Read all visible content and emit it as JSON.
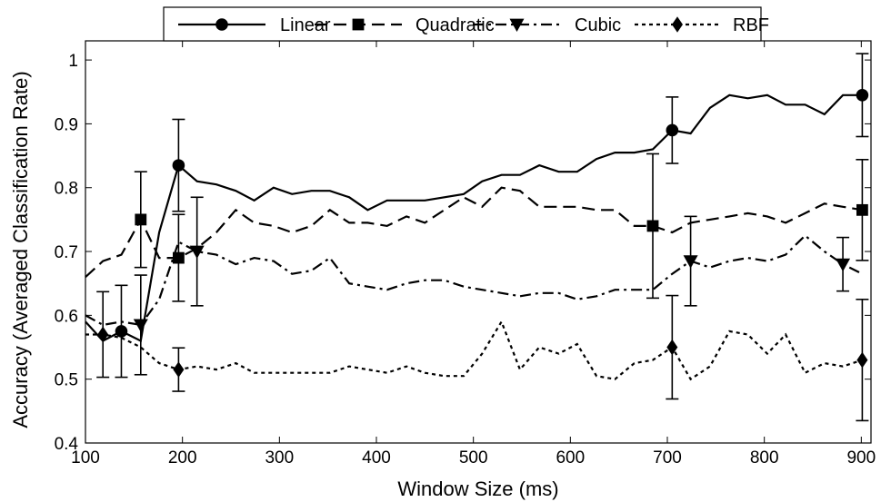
{
  "chart_data": {
    "type": "line",
    "title": "",
    "xlabel": "Window Size (ms)",
    "ylabel": "Accuracy (Averaged Classification Rate)",
    "xlim": [
      100,
      910
    ],
    "ylim": [
      0.4,
      1.03
    ],
    "xticks": [
      100,
      200,
      300,
      400,
      500,
      600,
      700,
      800,
      900
    ],
    "yticks": [
      0.4,
      0.5,
      0.6,
      0.7,
      0.8,
      0.9,
      1
    ],
    "xtick_labels": [
      "100",
      "200",
      "300",
      "400",
      "500",
      "600",
      "700",
      "800",
      "900"
    ],
    "ytick_labels": [
      "0.4",
      "0.5",
      "0.6",
      "0.7",
      "0.8",
      "0.9",
      "1"
    ],
    "grid": false,
    "legend_position": "top-center",
    "series": [
      {
        "name": "Linear",
        "line_style": "solid",
        "marker": "circle",
        "color": "#000000",
        "x": [
          100,
          118,
          137,
          157,
          176,
          196,
          215,
          235,
          255,
          274,
          294,
          313,
          333,
          352,
          372,
          391,
          411,
          450,
          490,
          509,
          529,
          548,
          568,
          588,
          607,
          627,
          646,
          666,
          685,
          705,
          724,
          744,
          764,
          783,
          803,
          822,
          842,
          862,
          881,
          901
        ],
        "y": [
          0.59,
          0.56,
          0.575,
          0.56,
          0.73,
          0.835,
          0.81,
          0.805,
          0.795,
          0.78,
          0.8,
          0.79,
          0.795,
          0.795,
          0.785,
          0.765,
          0.78,
          0.78,
          0.79,
          0.81,
          0.82,
          0.82,
          0.835,
          0.825,
          0.825,
          0.845,
          0.855,
          0.855,
          0.86,
          0.89,
          0.885,
          0.925,
          0.945,
          0.94,
          0.945,
          0.93,
          0.93,
          0.915,
          0.945,
          0.945
        ]
      },
      {
        "name": "Quadratic",
        "line_style": "dashed",
        "marker": "square",
        "color": "#000000",
        "x": [
          100,
          118,
          137,
          157,
          176,
          196,
          215,
          235,
          255,
          274,
          294,
          313,
          333,
          352,
          372,
          391,
          411,
          431,
          450,
          470,
          490,
          509,
          529,
          548,
          568,
          588,
          607,
          627,
          646,
          666,
          685,
          705,
          724,
          744,
          764,
          783,
          803,
          822,
          842,
          862,
          881,
          901
        ],
        "y": [
          0.66,
          0.685,
          0.695,
          0.75,
          0.69,
          0.69,
          0.705,
          0.73,
          0.765,
          0.745,
          0.74,
          0.73,
          0.74,
          0.765,
          0.745,
          0.745,
          0.74,
          0.755,
          0.745,
          0.765,
          0.785,
          0.77,
          0.8,
          0.795,
          0.77,
          0.77,
          0.77,
          0.765,
          0.765,
          0.74,
          0.74,
          0.73,
          0.745,
          0.75,
          0.755,
          0.76,
          0.755,
          0.745,
          0.76,
          0.775,
          0.77,
          0.765
        ]
      },
      {
        "name": "Cubic",
        "line_style": "dashdot",
        "marker": "triangle-down",
        "color": "#000000",
        "x": [
          100,
          118,
          137,
          157,
          176,
          196,
          215,
          235,
          255,
          274,
          294,
          313,
          333,
          352,
          372,
          391,
          411,
          431,
          450,
          470,
          490,
          509,
          529,
          548,
          568,
          588,
          607,
          627,
          646,
          666,
          685,
          705,
          724,
          744,
          764,
          783,
          803,
          822,
          842,
          862,
          881,
          901
        ],
        "y": [
          0.6,
          0.585,
          0.59,
          0.585,
          0.625,
          0.715,
          0.7,
          0.695,
          0.68,
          0.69,
          0.685,
          0.665,
          0.67,
          0.69,
          0.65,
          0.645,
          0.64,
          0.65,
          0.655,
          0.655,
          0.645,
          0.64,
          0.635,
          0.63,
          0.635,
          0.635,
          0.625,
          0.63,
          0.64,
          0.64,
          0.64,
          0.665,
          0.685,
          0.675,
          0.685,
          0.69,
          0.685,
          0.695,
          0.725,
          0.7,
          0.68,
          0.665
        ]
      },
      {
        "name": "RBF",
        "line_style": "dotted",
        "marker": "diamond",
        "color": "#000000",
        "x": [
          100,
          118,
          137,
          157,
          176,
          196,
          215,
          235,
          255,
          274,
          294,
          313,
          333,
          352,
          372,
          391,
          411,
          431,
          450,
          470,
          490,
          509,
          529,
          548,
          568,
          588,
          607,
          627,
          646,
          666,
          685,
          705,
          724,
          744,
          764,
          783,
          803,
          822,
          842,
          862,
          881,
          901
        ],
        "y": [
          0.57,
          0.57,
          0.565,
          0.55,
          0.525,
          0.515,
          0.52,
          0.515,
          0.525,
          0.51,
          0.51,
          0.51,
          0.51,
          0.51,
          0.52,
          0.515,
          0.51,
          0.52,
          0.51,
          0.505,
          0.505,
          0.54,
          0.59,
          0.515,
          0.55,
          0.54,
          0.555,
          0.505,
          0.5,
          0.525,
          0.53,
          0.55,
          0.5,
          0.52,
          0.575,
          0.57,
          0.54,
          0.57,
          0.51,
          0.525,
          0.52,
          0.53
        ]
      }
    ],
    "error_bars": [
      {
        "series": "Linear",
        "points": [
          {
            "x": 137,
            "y": 0.575,
            "err": 0.072
          },
          {
            "x": 196,
            "y": 0.835,
            "err": 0.072
          },
          {
            "x": 705,
            "y": 0.89,
            "err": 0.052
          },
          {
            "x": 901,
            "y": 0.945,
            "err": 0.065
          }
        ]
      },
      {
        "series": "Quadratic",
        "points": [
          {
            "x": 157,
            "y": 0.75,
            "err": 0.075
          },
          {
            "x": 196,
            "y": 0.69,
            "err": 0.068
          },
          {
            "x": 685,
            "y": 0.74,
            "err": 0.113
          },
          {
            "x": 901,
            "y": 0.765,
            "err": 0.079
          }
        ]
      },
      {
        "series": "Cubic",
        "points": [
          {
            "x": 157,
            "y": 0.585,
            "err": 0.078
          },
          {
            "x": 215,
            "y": 0.7,
            "err": 0.085
          },
          {
            "x": 724,
            "y": 0.685,
            "err": 0.07
          },
          {
            "x": 881,
            "y": 0.68,
            "err": 0.042
          }
        ]
      },
      {
        "series": "RBF",
        "points": [
          {
            "x": 118,
            "y": 0.57,
            "err": 0.067
          },
          {
            "x": 196,
            "y": 0.515,
            "err": 0.034
          },
          {
            "x": 705,
            "y": 0.55,
            "err": 0.081
          },
          {
            "x": 901,
            "y": 0.53,
            "err": 0.095
          }
        ]
      }
    ]
  }
}
